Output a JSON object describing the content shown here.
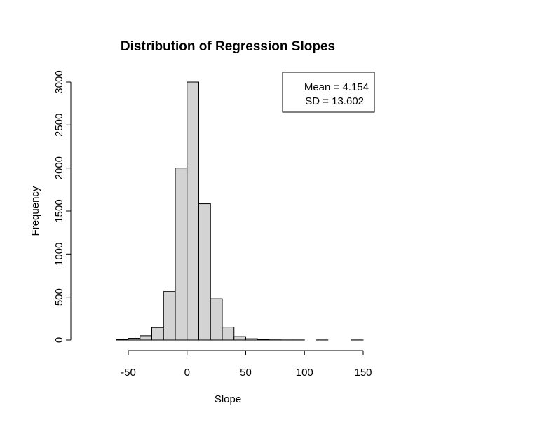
{
  "chart_data": {
    "type": "bar",
    "title": "Distribution of Regression Slopes",
    "xlabel": "Slope",
    "ylabel": "Frequency",
    "xlim": [
      -90,
      150
    ],
    "ylim": [
      0,
      3000
    ],
    "xticks": [
      -50,
      0,
      50,
      100,
      150
    ],
    "yticks": [
      0,
      500,
      1000,
      1500,
      2000,
      2500,
      3000
    ],
    "bin_width": 10,
    "bins": [
      {
        "x0": -60,
        "x1": -50,
        "count": 5
      },
      {
        "x0": -50,
        "x1": -40,
        "count": 20
      },
      {
        "x0": -40,
        "x1": -30,
        "count": 50
      },
      {
        "x0": -30,
        "x1": -20,
        "count": 145
      },
      {
        "x0": -20,
        "x1": -10,
        "count": 565
      },
      {
        "x0": -10,
        "x1": 0,
        "count": 2000
      },
      {
        "x0": 0,
        "x1": 10,
        "count": 3000
      },
      {
        "x0": 10,
        "x1": 20,
        "count": 1585
      },
      {
        "x0": 20,
        "x1": 30,
        "count": 480
      },
      {
        "x0": 30,
        "x1": 40,
        "count": 150
      },
      {
        "x0": 40,
        "x1": 50,
        "count": 40
      },
      {
        "x0": 50,
        "x1": 60,
        "count": 15
      },
      {
        "x0": 60,
        "x1": 70,
        "count": 5
      },
      {
        "x0": 70,
        "x1": 80,
        "count": 2
      },
      {
        "x0": 80,
        "x1": 90,
        "count": 1
      },
      {
        "x0": 90,
        "x1": 100,
        "count": 1
      },
      {
        "x0": 100,
        "x1": 110,
        "count": 0
      },
      {
        "x0": 110,
        "x1": 120,
        "count": 1
      },
      {
        "x0": 120,
        "x1": 130,
        "count": 0
      },
      {
        "x0": 130,
        "x1": 140,
        "count": 0
      },
      {
        "x0": 140,
        "x1": 150,
        "count": 1
      }
    ],
    "bar_fill": "#d3d3d3",
    "bar_stroke": "#000000",
    "legend": {
      "lines": [
        "Mean = 4.154",
        "SD = 13.602"
      ],
      "position": "top-right"
    },
    "grid": false
  }
}
